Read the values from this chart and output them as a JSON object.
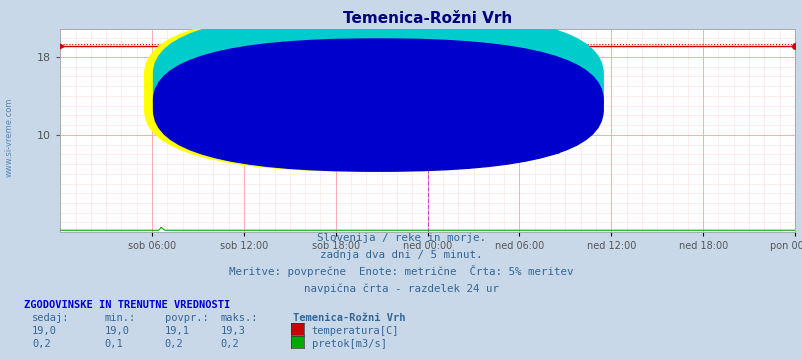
{
  "title": "Temenica-Rožni Vrh",
  "title_color": "#000080",
  "bg_color": "#c8d8e8",
  "plot_bg_color": "#ffffff",
  "grid_color_major": "#ffaaaa",
  "grid_color_minor": "#ffdddd",
  "vgrid_color": "#ddaaaa",
  "ylim": [
    0,
    20.9
  ],
  "yticks": [
    10,
    18
  ],
  "xlabel_ticks": [
    "sob 06:00",
    "sob 12:00",
    "sob 18:00",
    "ned 00:00",
    "ned 06:00",
    "ned 12:00",
    "ned 18:00",
    "pon 00:00"
  ],
  "n_points": 577,
  "temp_value": 19.1,
  "temp_max": 19.3,
  "temp_color": "#cc0000",
  "flow_value": 0.2,
  "flow_color": "#00aa00",
  "watermark": "www.si-vreme.com",
  "watermark_color": "#4477aa",
  "left_label": "www.si-vreme.com",
  "left_label_color": "#5588bb",
  "subtitle_lines": [
    "Slovenija / reke in morje.",
    "zadnja dva dni / 5 minut.",
    "Meritve: povprečne  Enote: metrične  Črta: 5% meritev",
    "navpična črta - razdelek 24 ur"
  ],
  "subtitle_color": "#336699",
  "legend_header": "ZGODOVINSKE IN TRENUTNE VREDNOSTI",
  "legend_header_color": "#0000cc",
  "legend_title": "Temenica-Rožni Vrh",
  "col_headers": [
    "sedaj:",
    "min.:",
    "povpr.:",
    "maks.:"
  ],
  "col_header_color": "#336699",
  "temp_row": [
    "19,0",
    "19,0",
    "19,1",
    "19,3"
  ],
  "flow_row": [
    "0,2",
    "0,1",
    "0,2",
    "0,2"
  ],
  "temp_label": "temperatura[C]",
  "flow_label": "pretok[m3/s]",
  "row_color": "#336699",
  "vline_color": "#cc44cc",
  "vline_dash": "--",
  "logo_colors": [
    "#ffff00",
    "#00cccc",
    "#0000cc"
  ],
  "tick_color": "#555555",
  "spine_color": "#aaaaaa",
  "border_color": "#aaaaaa"
}
